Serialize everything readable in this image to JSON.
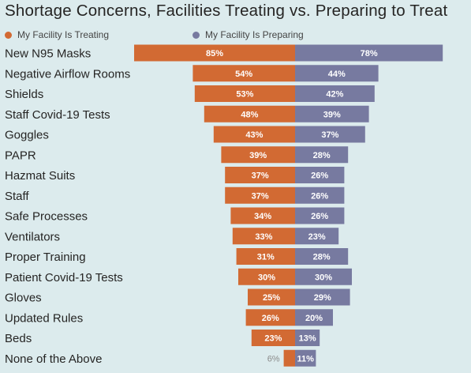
{
  "colors": {
    "treating": "#d26a33",
    "preparing": "#777aa0",
    "background": "#dcebed"
  },
  "chart_data": {
    "type": "bar",
    "title": "Shortage Concerns, Facilities Treating vs. Preparing to Treat",
    "legend_position": "top-left",
    "categories": [
      "New N95 Masks",
      "Negative Airflow Rooms",
      "Shields",
      "Staff Covid-19 Tests",
      "Goggles",
      "PAPR",
      "Hazmat Suits",
      "Staff",
      "Safe Processes",
      "Ventilators",
      "Proper Training",
      "Patient Covid-19 Tests",
      "Gloves",
      "Updated Rules",
      "Beds",
      "None of the Above"
    ],
    "series": [
      {
        "name": "My Facility Is Treating",
        "direction": "left",
        "values": [
          85,
          54,
          53,
          48,
          43,
          39,
          37,
          37,
          34,
          33,
          31,
          30,
          25,
          26,
          23,
          6
        ]
      },
      {
        "name": "My Facility Is Preparing",
        "direction": "right",
        "values": [
          78,
          44,
          42,
          39,
          37,
          28,
          26,
          26,
          26,
          23,
          28,
          30,
          29,
          20,
          13,
          11
        ]
      }
    ],
    "value_suffix": "%",
    "xlim": [
      0,
      100
    ]
  }
}
